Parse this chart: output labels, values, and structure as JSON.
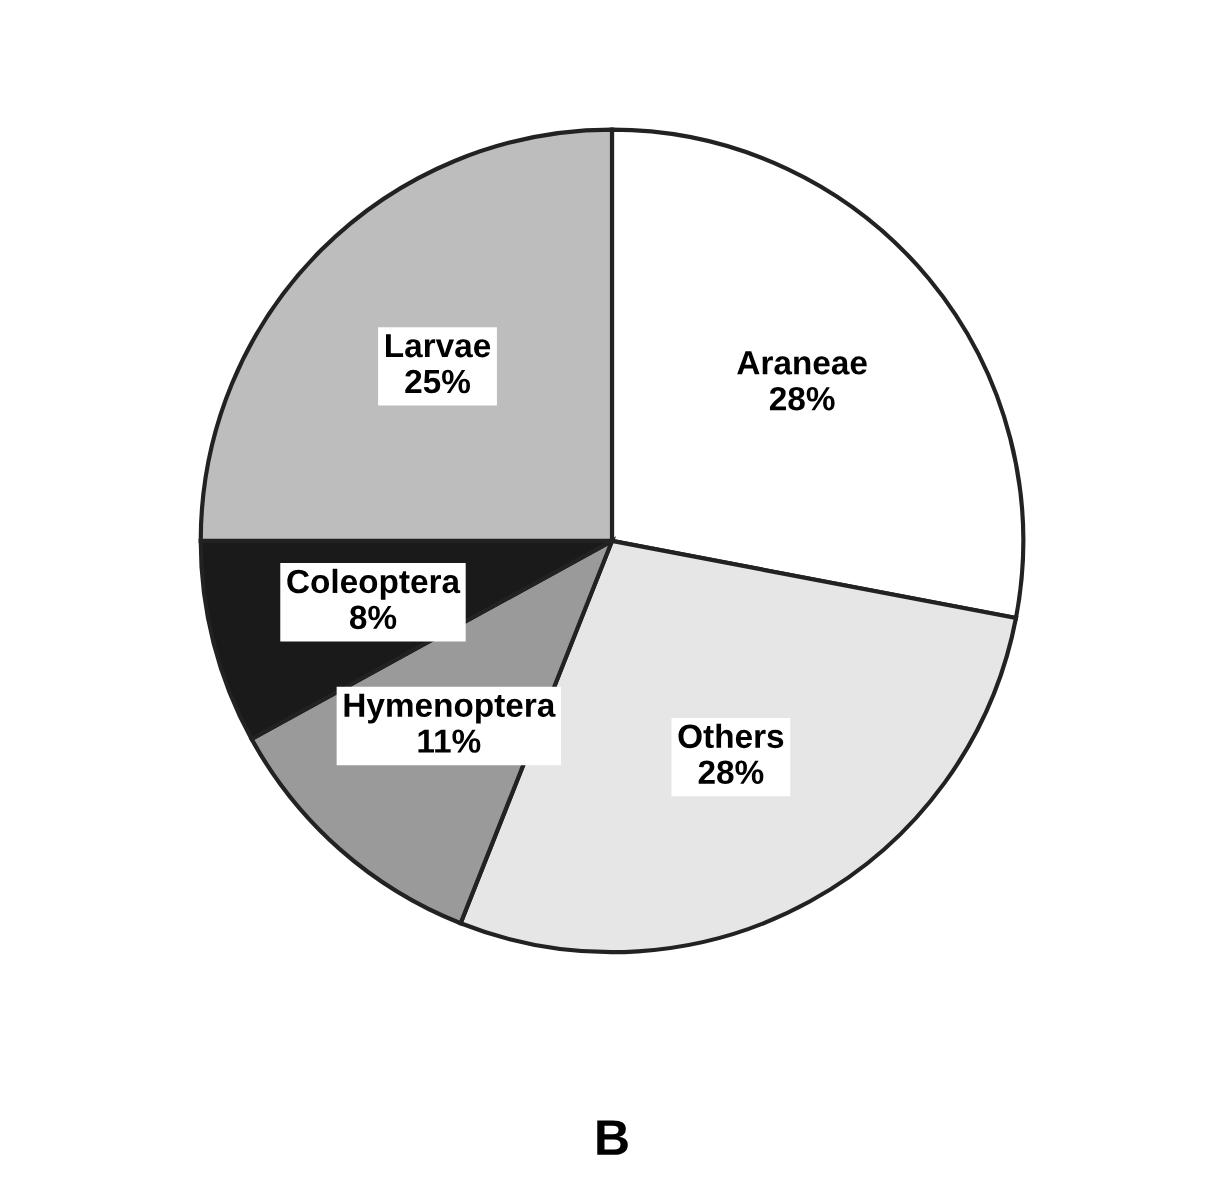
{
  "chart_data": {
    "type": "pie",
    "categories": [
      "Araneae",
      "Others",
      "Hymenoptera",
      "Coleoptera",
      "Larvae"
    ],
    "values": [
      28,
      28,
      11,
      8,
      25
    ],
    "value_labels": [
      "28%",
      "28%",
      "11%",
      "8%",
      "25%"
    ],
    "colors": [
      "#ffffff",
      "#e6e6e6",
      "#9a9a9a",
      "#1a1a1a",
      "#bdbdbd"
    ],
    "annotations": [
      "B"
    ]
  }
}
